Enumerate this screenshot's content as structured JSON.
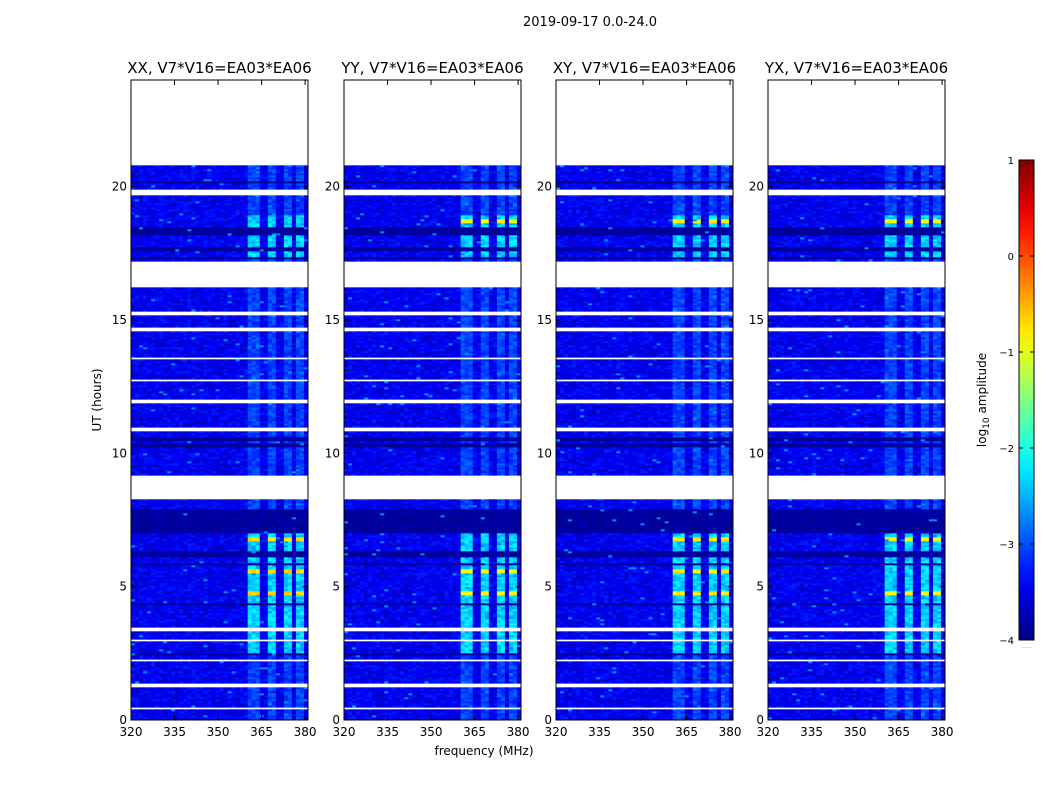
{
  "figure": {
    "suptitle": "2019-09-17 0.0-24.0"
  },
  "chart_data": {
    "type": "heatmap",
    "title": "2019-09-17 0.0-24.0",
    "xlabel": "frequency (MHz)",
    "ylabel": "UT (hours)",
    "xlim": [
      320,
      381
    ],
    "ylim": [
      0,
      24
    ],
    "x_ticks": [
      320,
      335,
      350,
      365,
      380
    ],
    "y_ticks": [
      0,
      5,
      10,
      15,
      20
    ],
    "panels": [
      {
        "name": "XX",
        "title": "XX, V7*V16=EA03*EA06",
        "strong_row_hours": [
          4.75,
          5.55,
          6.75
        ],
        "strong_level": -0.7
      },
      {
        "name": "YY",
        "title": "YY, V7*V16=EA03*EA06",
        "strong_row_hours": [
          18.7,
          4.75,
          5.55
        ],
        "strong_level": -0.9
      },
      {
        "name": "XY",
        "title": "XY, V7*V16=EA03*EA06",
        "strong_row_hours": [
          18.7,
          4.75,
          5.55,
          6.75
        ],
        "strong_level": -0.8
      },
      {
        "name": "YX",
        "title": "YX, V7*V16=EA03*EA06",
        "strong_row_hours": [
          18.7,
          4.75,
          6.75
        ],
        "strong_level": -0.9
      }
    ],
    "data_time_range_hours": [
      0,
      20.8
    ],
    "flagged_blank_bands_hours": [
      [
        16.2,
        17.2
      ],
      [
        19.7,
        19.9
      ],
      [
        11.85,
        12.0
      ],
      [
        10.85,
        10.95
      ],
      [
        8.3,
        9.15
      ],
      [
        3.3,
        3.45
      ],
      [
        2.95,
        3.05
      ],
      [
        2.2,
        2.3
      ],
      [
        1.25,
        1.35
      ],
      [
        0.4,
        0.48
      ],
      [
        12.7,
        12.8
      ],
      [
        13.5,
        13.6
      ],
      [
        14.6,
        14.7
      ],
      [
        15.15,
        15.35
      ]
    ],
    "dark_bands_hours": [
      [
        20.1,
        20.2
      ],
      [
        18.2,
        18.45
      ],
      [
        17.6,
        17.7
      ],
      [
        17.25,
        17.35
      ],
      [
        10.2,
        10.35
      ],
      [
        10.45,
        10.6
      ],
      [
        7.0,
        7.9
      ],
      [
        6.1,
        6.3
      ],
      [
        5.8,
        5.9
      ],
      [
        4.3,
        4.4
      ],
      [
        2.4,
        2.5
      ]
    ],
    "enhanced_freq_bands_mhz": [
      [
        360.5,
        365.0
      ],
      [
        367.0,
        370.5
      ],
      [
        372.0,
        375.5
      ],
      [
        376.5,
        379.5
      ]
    ],
    "active_hour_ranges": [
      [
        2.4,
        7.0
      ],
      [
        17.3,
        18.9
      ]
    ],
    "colorbar": {
      "label": "log10 amplitude",
      "label_base": "log",
      "label_sub": "10",
      "label_rest": " amplitude",
      "min": -4,
      "max": 1,
      "ticks": [
        -4,
        -3,
        -2,
        -1,
        0,
        1
      ],
      "colormap": "jet",
      "underflow_marker": "......"
    }
  }
}
